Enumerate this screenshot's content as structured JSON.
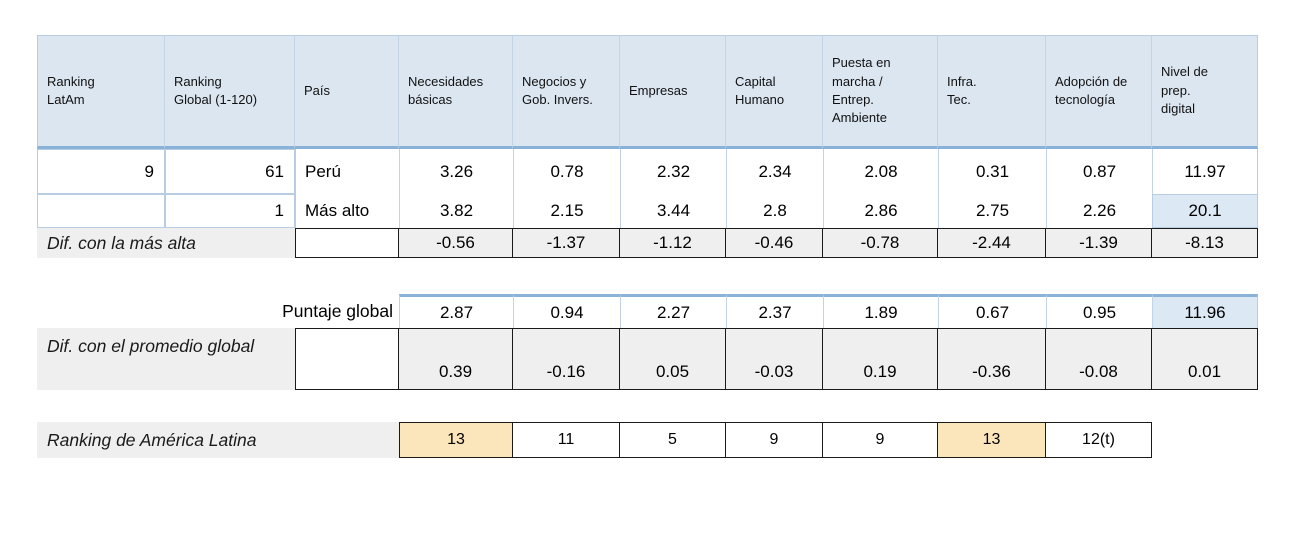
{
  "table": {
    "headers": [
      "Ranking LatAm",
      "Ranking Global (1-120)",
      "País",
      "Necesidades básicas",
      "Negocios y Gob. Invers.",
      "Empresas",
      "Capital Humano",
      "Puesta en marcha / Entrep. Ambiente",
      "Infra. Tec.",
      "Adopción de tecnología",
      "Nivel de prep. digital"
    ],
    "rows": {
      "peru": {
        "ranking_latam": "9",
        "ranking_global": "61",
        "pais": "Perú",
        "values": [
          "3.26",
          "0.78",
          "2.32",
          "2.34",
          "2.08",
          "0.31",
          "0.87",
          "11.97"
        ]
      },
      "mas_alto": {
        "ranking_latam": "",
        "ranking_global": "1",
        "pais": "Más alto",
        "values": [
          "3.82",
          "2.15",
          "3.44",
          "2.8",
          "2.86",
          "2.75",
          "2.26",
          "20.1"
        ]
      },
      "dif_mas_alta": {
        "label": "Dif. con la más alta",
        "values": [
          "-0.56",
          "-1.37",
          "-1.12",
          "-0.46",
          "-0.78",
          "-2.44",
          "-1.39",
          "-8.13"
        ]
      },
      "puntaje_global": {
        "label": "Puntaje global",
        "values": [
          "2.87",
          "0.94",
          "2.27",
          "2.37",
          "1.89",
          "0.67",
          "0.95",
          "11.96"
        ]
      },
      "dif_promedio": {
        "label": "Dif. con el promedio global",
        "values": [
          "0.39",
          "-0.16",
          "0.05",
          "-0.03",
          "0.19",
          "-0.36",
          "-0.08",
          "0.01"
        ]
      },
      "ranking_america_latina": {
        "label": "Ranking de América Latina",
        "values": [
          "13",
          "11",
          "5",
          "9",
          "9",
          "13",
          "12(t)"
        ]
      }
    },
    "colors": {
      "header_bg": "#dce6f1",
      "highlight_blue_bg": "#dce8f4",
      "beige_bg": "#fbe6bc",
      "gray_bg": "#efefef",
      "accent_border": "#8ab2d8",
      "light_border": "#b9cde2"
    }
  }
}
